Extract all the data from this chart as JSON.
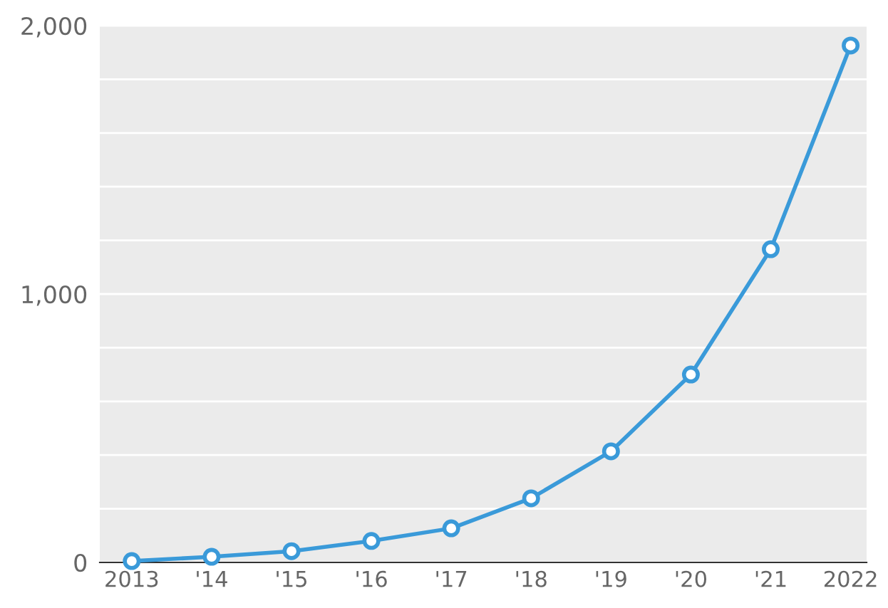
{
  "chart_data": {
    "type": "line",
    "categories": [
      "2013",
      "'14",
      "'15",
      "'16",
      "'17",
      "'18",
      "'19",
      "'20",
      "'21",
      "2022"
    ],
    "series": [
      {
        "color": "#3a9ad9",
        "values": [
          5,
          21,
          42,
          80,
          127,
          239,
          414,
          700,
          1167,
          1926
        ]
      }
    ],
    "ylim": [
      0,
      2000
    ],
    "yticks": [
      0,
      {
        "value": 200,
        "label": null
      },
      {
        "value": 400,
        "label": null
      },
      {
        "value": 600,
        "label": null
      },
      {
        "value": 800,
        "label": null
      },
      {
        "value": 1000,
        "label": "1,000"
      },
      {
        "value": 1200,
        "label": null
      },
      {
        "value": 1400,
        "label": null
      },
      {
        "value": 1600,
        "label": null
      },
      {
        "value": 1800,
        "label": null
      },
      {
        "value": 2000,
        "label": "2,000"
      }
    ],
    "grid": "y",
    "marker": "circle",
    "line_style": "solid",
    "legend": false
  }
}
